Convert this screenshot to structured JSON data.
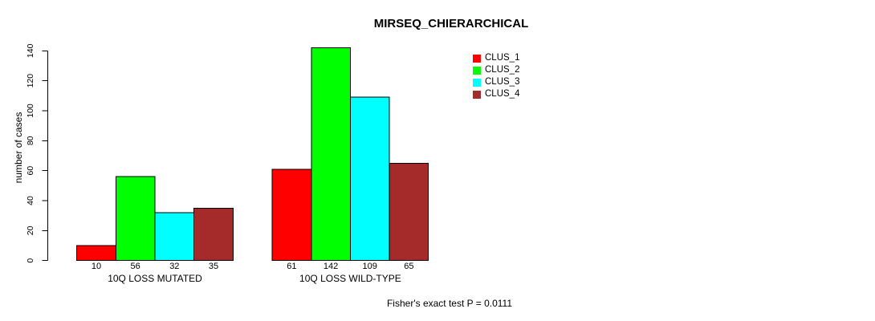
{
  "chart_data": {
    "type": "bar",
    "title": "MIRSEQ_CHIERARCHICAL",
    "ylabel": "number of cases",
    "xlabel": "",
    "ylim": [
      0,
      140
    ],
    "yticks": [
      0,
      20,
      40,
      60,
      80,
      100,
      120,
      140
    ],
    "grid": false,
    "legend_position": "top-right",
    "categories": [
      "10Q LOSS MUTATED",
      "10Q LOSS WILD-TYPE"
    ],
    "series": [
      {
        "name": "CLUS_1",
        "color": "#FF0000",
        "values": [
          10,
          61
        ]
      },
      {
        "name": "CLUS_2",
        "color": "#00FF00",
        "values": [
          56,
          142
        ]
      },
      {
        "name": "CLUS_3",
        "color": "#00FFFF",
        "values": [
          32,
          109
        ]
      },
      {
        "name": "CLUS_4",
        "color": "#A52A2A",
        "values": [
          35,
          65
        ]
      }
    ],
    "bar_value_labels": [
      [
        10,
        56,
        32,
        35
      ],
      [
        61,
        142,
        109,
        65
      ]
    ],
    "annotation": "Fisher's exact test P = 0.0111"
  }
}
